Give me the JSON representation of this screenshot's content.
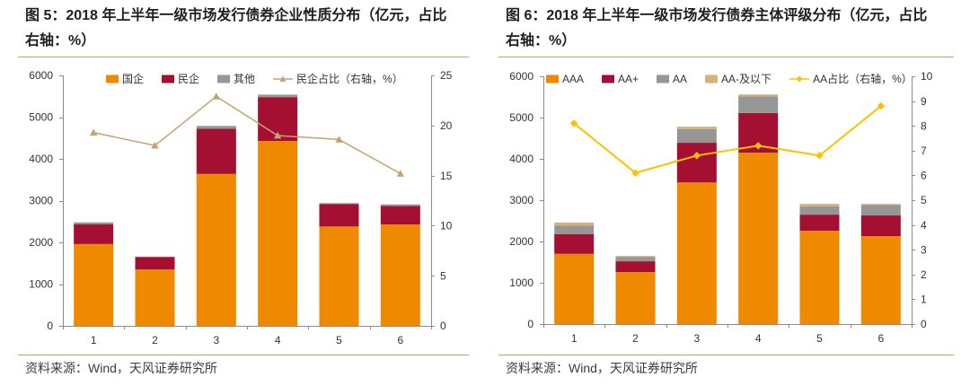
{
  "chart_data": [
    {
      "type": "bar",
      "stacked": true,
      "title_lines": [
        "图 5：2018 年上半年一级市场发行债券企业性质分布（亿元，占比",
        "右轴：%）"
      ],
      "source": "资料来源：Wind，天风证券研究所",
      "categories": [
        "1",
        "2",
        "3",
        "4",
        "5",
        "6"
      ],
      "series": [
        {
          "name": "国企",
          "type": "bar",
          "axis": "left",
          "color": "#EF8A00",
          "values": [
            1960,
            1350,
            3640,
            4430,
            2380,
            2430
          ]
        },
        {
          "name": "民企",
          "type": "bar",
          "axis": "left",
          "color": "#A50F32",
          "values": [
            470,
            300,
            1080,
            1050,
            540,
            440
          ]
        },
        {
          "name": "其他",
          "type": "bar",
          "axis": "left",
          "color": "#969696",
          "values": [
            50,
            10,
            70,
            60,
            20,
            40
          ]
        },
        {
          "name": "民企占比（右轴，%）",
          "type": "line",
          "axis": "right",
          "color": "#C4A46C",
          "marker": "triangle",
          "values": [
            19.3,
            18.0,
            22.9,
            19.0,
            18.6,
            15.2
          ]
        }
      ],
      "ylim": [
        0,
        6000
      ],
      "yticks": [
        0,
        1000,
        2000,
        3000,
        4000,
        5000,
        6000
      ],
      "y2lim": [
        0,
        25
      ],
      "y2ticks": [
        0,
        5,
        10,
        15,
        20,
        25
      ],
      "legend": "top",
      "grid": false
    },
    {
      "type": "bar",
      "stacked": true,
      "title_lines": [
        "图 6：2018 年上半年一级市场发行债券主体评级分布（亿元，占比",
        "右轴：%）"
      ],
      "source": "资料来源：Wind，天风证券研究所",
      "categories": [
        "1",
        "2",
        "3",
        "4",
        "5",
        "6"
      ],
      "series": [
        {
          "name": "AAA",
          "type": "bar",
          "axis": "left",
          "color": "#EF8A00",
          "values": [
            1700,
            1260,
            3430,
            4150,
            2260,
            2130
          ]
        },
        {
          "name": "AA+",
          "type": "bar",
          "axis": "left",
          "color": "#A50F32",
          "values": [
            480,
            260,
            960,
            960,
            390,
            500
          ]
        },
        {
          "name": "AA",
          "type": "bar",
          "axis": "left",
          "color": "#969696",
          "values": [
            200,
            100,
            330,
            400,
            200,
            250
          ]
        },
        {
          "name": "AA-及以下",
          "type": "bar",
          "axis": "left",
          "color": "#D2B27A",
          "values": [
            80,
            30,
            60,
            50,
            60,
            30
          ]
        },
        {
          "name": "AA占比（右轴，%）",
          "type": "line",
          "axis": "right",
          "color": "#FFC000",
          "marker": "diamond",
          "values": [
            8.1,
            6.1,
            6.8,
            7.2,
            6.8,
            8.8
          ]
        }
      ],
      "ylim": [
        0,
        6000
      ],
      "yticks": [
        0,
        1000,
        2000,
        3000,
        4000,
        5000,
        6000
      ],
      "y2lim": [
        0,
        10
      ],
      "y2ticks": [
        0,
        1,
        2,
        3,
        4,
        5,
        6,
        7,
        8,
        9,
        10
      ],
      "legend": "top",
      "grid": false
    }
  ]
}
